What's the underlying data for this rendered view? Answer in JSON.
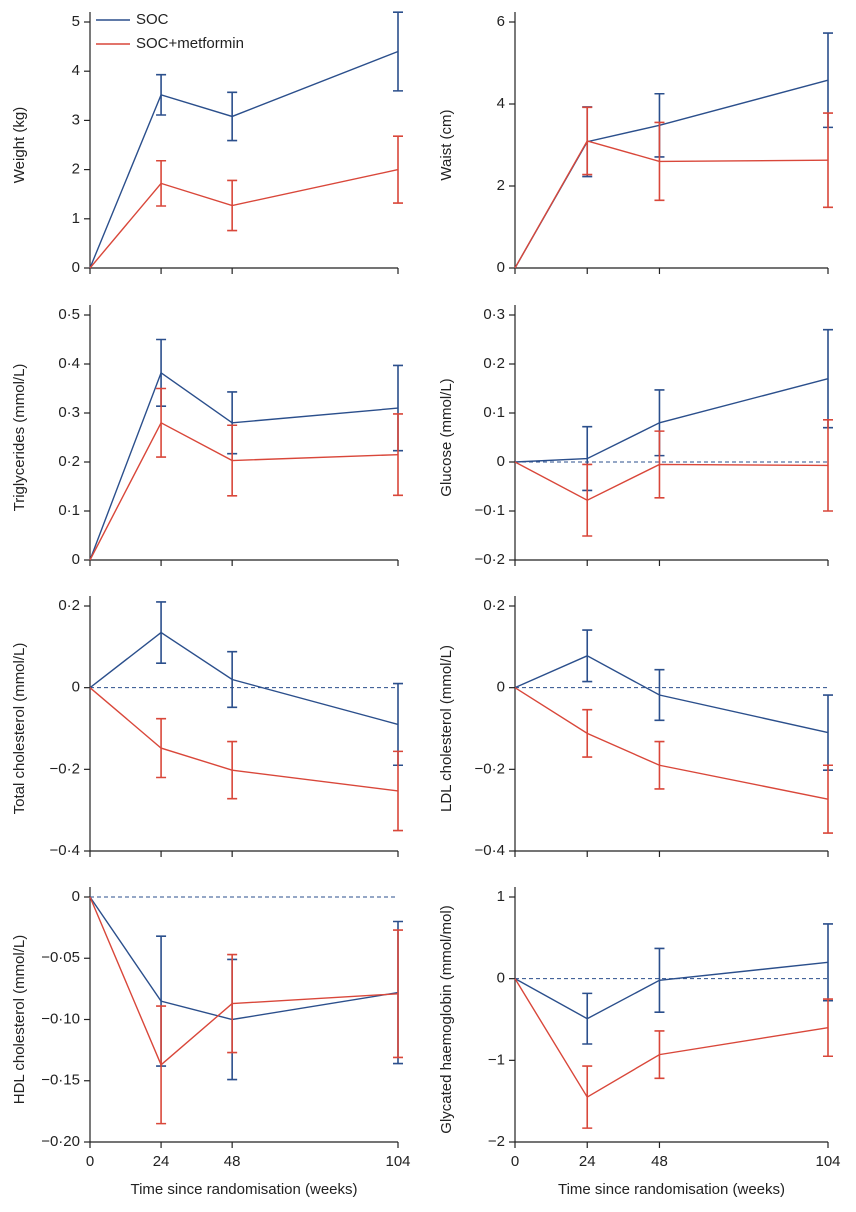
{
  "chart_data": [
    {
      "type": "line",
      "ylabel": "Weight (kg)",
      "x": [
        0,
        24,
        48,
        104
      ],
      "xlim": [
        0,
        104
      ],
      "xticks": [
        0,
        24,
        48,
        104
      ],
      "ylim": [
        0,
        5
      ],
      "yticks": [
        0,
        1,
        2,
        3,
        4,
        5
      ],
      "legend": "top-left",
      "series": [
        {
          "name": "SOC",
          "color": "#2b4f8c",
          "values": [
            0,
            3.52,
            3.08,
            4.4
          ],
          "errors": [
            null,
            0.41,
            0.49,
            0.8
          ]
        },
        {
          "name": "SOC+metformin",
          "color": "#d9473a",
          "values": [
            0,
            1.72,
            1.27,
            2.0
          ],
          "errors": [
            null,
            0.46,
            0.51,
            0.68
          ]
        }
      ]
    },
    {
      "type": "line",
      "ylabel": "Waist (cm)",
      "x": [
        0,
        24,
        48,
        104
      ],
      "xlim": [
        0,
        104
      ],
      "xticks": [
        0,
        24,
        48,
        104
      ],
      "ylim": [
        0,
        6
      ],
      "yticks": [
        0,
        2,
        4,
        6
      ],
      "series": [
        {
          "name": "SOC",
          "color": "#2b4f8c",
          "values": [
            0,
            3.08,
            3.48,
            4.58
          ],
          "errors": [
            null,
            0.85,
            0.77,
            1.15
          ]
        },
        {
          "name": "SOC+metformin",
          "color": "#d9473a",
          "values": [
            0,
            3.1,
            2.6,
            2.63
          ],
          "errors": [
            null,
            0.82,
            0.95,
            1.15
          ]
        }
      ]
    },
    {
      "type": "line",
      "ylabel": "Triglycerides (mmol/L)",
      "x": [
        0,
        24,
        48,
        104
      ],
      "xlim": [
        0,
        104
      ],
      "xticks": [
        0,
        24,
        48,
        104
      ],
      "ylim": [
        0,
        0.5
      ],
      "yticks": [
        0,
        {
          "value": 0.1,
          "label": "0·1"
        },
        {
          "value": 0.2,
          "label": "0·2"
        },
        {
          "value": 0.3,
          "label": "0·3"
        },
        {
          "value": 0.4,
          "label": "0·4"
        },
        {
          "value": 0.5,
          "label": "0·5"
        }
      ],
      "series": [
        {
          "name": "SOC",
          "color": "#2b4f8c",
          "values": [
            0,
            0.382,
            0.28,
            0.31
          ],
          "errors": [
            null,
            0.068,
            0.063,
            0.087
          ]
        },
        {
          "name": "SOC+metformin",
          "color": "#d9473a",
          "values": [
            0,
            0.28,
            0.203,
            0.215
          ],
          "errors": [
            null,
            0.07,
            0.072,
            0.083
          ]
        }
      ]
    },
    {
      "type": "line",
      "ylabel": "Glucose (mmol/L)",
      "x": [
        0,
        24,
        48,
        104
      ],
      "xlim": [
        0,
        104
      ],
      "xticks": [
        0,
        24,
        48,
        104
      ],
      "ylim": [
        -0.2,
        0.3
      ],
      "yticks": [
        {
          "value": -0.2,
          "label": "−0·2"
        },
        {
          "value": -0.1,
          "label": "−0·1"
        },
        0,
        {
          "value": 0.1,
          "label": "0·1"
        },
        {
          "value": 0.2,
          "label": "0·2"
        },
        {
          "value": 0.3,
          "label": "0·3"
        }
      ],
      "hline": 0,
      "series": [
        {
          "name": "SOC",
          "color": "#2b4f8c",
          "values": [
            0,
            0.007,
            0.08,
            0.17
          ],
          "errors": [
            null,
            0.065,
            0.067,
            0.1
          ]
        },
        {
          "name": "SOC+metformin",
          "color": "#d9473a",
          "values": [
            0,
            -0.078,
            -0.005,
            -0.007
          ],
          "errors": [
            null,
            0.073,
            0.068,
            0.093
          ]
        }
      ]
    },
    {
      "type": "line",
      "ylabel": "Total cholesterol (mmol/L)",
      "x": [
        0,
        24,
        48,
        104
      ],
      "xlim": [
        0,
        104
      ],
      "xticks": [
        0,
        24,
        48,
        104
      ],
      "ylim": [
        -0.4,
        0.2
      ],
      "yticks": [
        {
          "value": -0.4,
          "label": "−0·4"
        },
        {
          "value": -0.2,
          "label": "−0·2"
        },
        0,
        {
          "value": 0.2,
          "label": "0·2"
        }
      ],
      "hline": 0,
      "series": [
        {
          "name": "SOC",
          "color": "#2b4f8c",
          "values": [
            0,
            0.135,
            0.02,
            -0.09
          ],
          "errors": [
            null,
            0.075,
            0.068,
            0.1
          ]
        },
        {
          "name": "SOC+metformin",
          "color": "#d9473a",
          "values": [
            0,
            -0.148,
            -0.202,
            -0.253
          ],
          "errors": [
            null,
            0.072,
            0.07,
            0.097
          ]
        }
      ]
    },
    {
      "type": "line",
      "ylabel": "LDL cholesterol (mmol/L)",
      "x": [
        0,
        24,
        48,
        104
      ],
      "xlim": [
        0,
        104
      ],
      "xticks": [
        0,
        24,
        48,
        104
      ],
      "ylim": [
        -0.4,
        0.2
      ],
      "yticks": [
        {
          "value": -0.4,
          "label": "−0·4"
        },
        {
          "value": -0.2,
          "label": "−0·2"
        },
        0,
        {
          "value": 0.2,
          "label": "0·2"
        }
      ],
      "hline": 0,
      "series": [
        {
          "name": "SOC",
          "color": "#2b4f8c",
          "values": [
            0,
            0.078,
            -0.018,
            -0.11
          ],
          "errors": [
            null,
            0.063,
            0.062,
            0.092
          ]
        },
        {
          "name": "SOC+metformin",
          "color": "#d9473a",
          "values": [
            0,
            -0.112,
            -0.19,
            -0.273
          ],
          "errors": [
            null,
            0.058,
            0.058,
            0.083
          ]
        }
      ]
    },
    {
      "type": "line",
      "ylabel": "HDL cholesterol (mmol/L)",
      "xlabel": "Time since randomisation (weeks)",
      "x": [
        0,
        24,
        48,
        104
      ],
      "xlim": [
        0,
        104
      ],
      "xticks": [
        0,
        24,
        48,
        104
      ],
      "ylim": [
        -0.2,
        0
      ],
      "yticks": [
        {
          "value": -0.2,
          "label": "−0·20"
        },
        {
          "value": -0.15,
          "label": "−0·15"
        },
        {
          "value": -0.1,
          "label": "−0·10"
        },
        {
          "value": -0.05,
          "label": "−0·05"
        },
        0
      ],
      "hline": 0,
      "series": [
        {
          "name": "SOC",
          "color": "#2b4f8c",
          "values": [
            0,
            -0.085,
            -0.1,
            -0.078
          ],
          "errors": [
            null,
            0.053,
            0.049,
            0.058
          ]
        },
        {
          "name": "SOC+metformin",
          "color": "#d9473a",
          "values": [
            0,
            -0.137,
            -0.087,
            -0.079
          ],
          "errors": [
            null,
            0.048,
            0.04,
            0.052
          ]
        }
      ]
    },
    {
      "type": "line",
      "ylabel": "Glycated haemoglobin (mmol/mol)",
      "xlabel": "Time since randomisation (weeks)",
      "x": [
        0,
        24,
        48,
        104
      ],
      "xlim": [
        0,
        104
      ],
      "xticks": [
        0,
        24,
        48,
        104
      ],
      "ylim": [
        -2,
        1
      ],
      "yticks": [
        {
          "value": -2,
          "label": "−2"
        },
        {
          "value": -1,
          "label": "−1"
        },
        0,
        1
      ],
      "hline": 0,
      "series": [
        {
          "name": "SOC",
          "color": "#2b4f8c",
          "values": [
            0,
            -0.49,
            -0.02,
            0.2
          ],
          "errors": [
            null,
            0.31,
            0.39,
            0.47
          ]
        },
        {
          "name": "SOC+metformin",
          "color": "#d9473a",
          "values": [
            0,
            -1.45,
            -0.93,
            -0.6
          ],
          "errors": [
            null,
            0.38,
            0.29,
            0.35
          ]
        }
      ]
    }
  ]
}
